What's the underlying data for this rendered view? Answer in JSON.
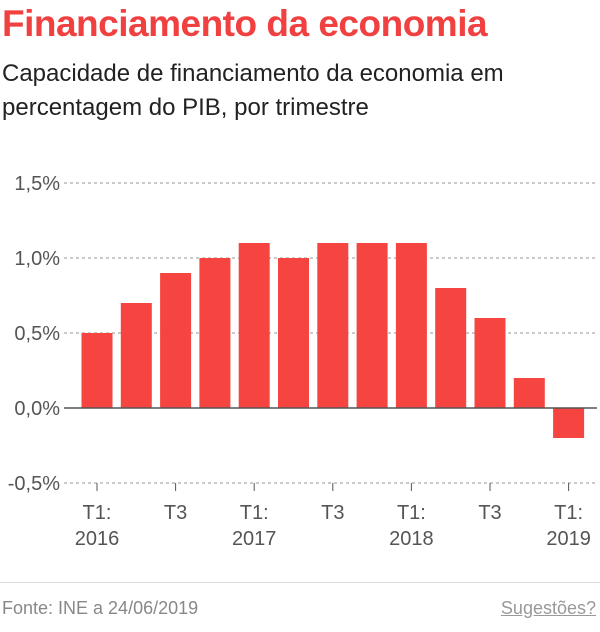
{
  "header": {
    "title": "Financiamento da economia",
    "subtitle": "Capacidade de financiamento da economia em percentagem do PIB, por trimestre"
  },
  "footer": {
    "source": "Fonte: INE a 24/06/2019",
    "suggestions_link": "Sugestões?"
  },
  "colors": {
    "bar": "#f64540",
    "title": "#f04040",
    "grid": "#aaaaaa",
    "text": "#555555"
  },
  "chart_data": {
    "type": "bar",
    "categories": [
      "T1 2016",
      "T2 2016",
      "T3 2016",
      "T4 2016",
      "T1 2017",
      "T2 2017",
      "T3 2017",
      "T4 2017",
      "T1 2018",
      "T2 2018",
      "T3 2018",
      "T4 2018",
      "T1 2019"
    ],
    "values": [
      0.5,
      0.7,
      0.9,
      1.0,
      1.1,
      1.0,
      1.1,
      1.1,
      1.1,
      0.8,
      0.6,
      0.2,
      -0.2
    ],
    "y_ticks": [
      1.5,
      1.0,
      0.5,
      0.0,
      -0.5
    ],
    "y_tick_labels": [
      "1,5%",
      "1,0%",
      "0,5%",
      "0,0%",
      "-0,5%"
    ],
    "x_tick_labels": [
      {
        "index": 0,
        "lines": [
          "T1:",
          "2016"
        ]
      },
      {
        "index": 2,
        "lines": [
          "T3"
        ]
      },
      {
        "index": 4,
        "lines": [
          "T1:",
          "2017"
        ]
      },
      {
        "index": 6,
        "lines": [
          "T3"
        ]
      },
      {
        "index": 8,
        "lines": [
          "T1:",
          "2018"
        ]
      },
      {
        "index": 10,
        "lines": [
          "T3"
        ]
      },
      {
        "index": 12,
        "lines": [
          "T1:",
          "2019"
        ]
      }
    ],
    "ylim": [
      -0.5,
      1.5
    ],
    "grid": true,
    "xlabel": "",
    "ylabel": ""
  }
}
